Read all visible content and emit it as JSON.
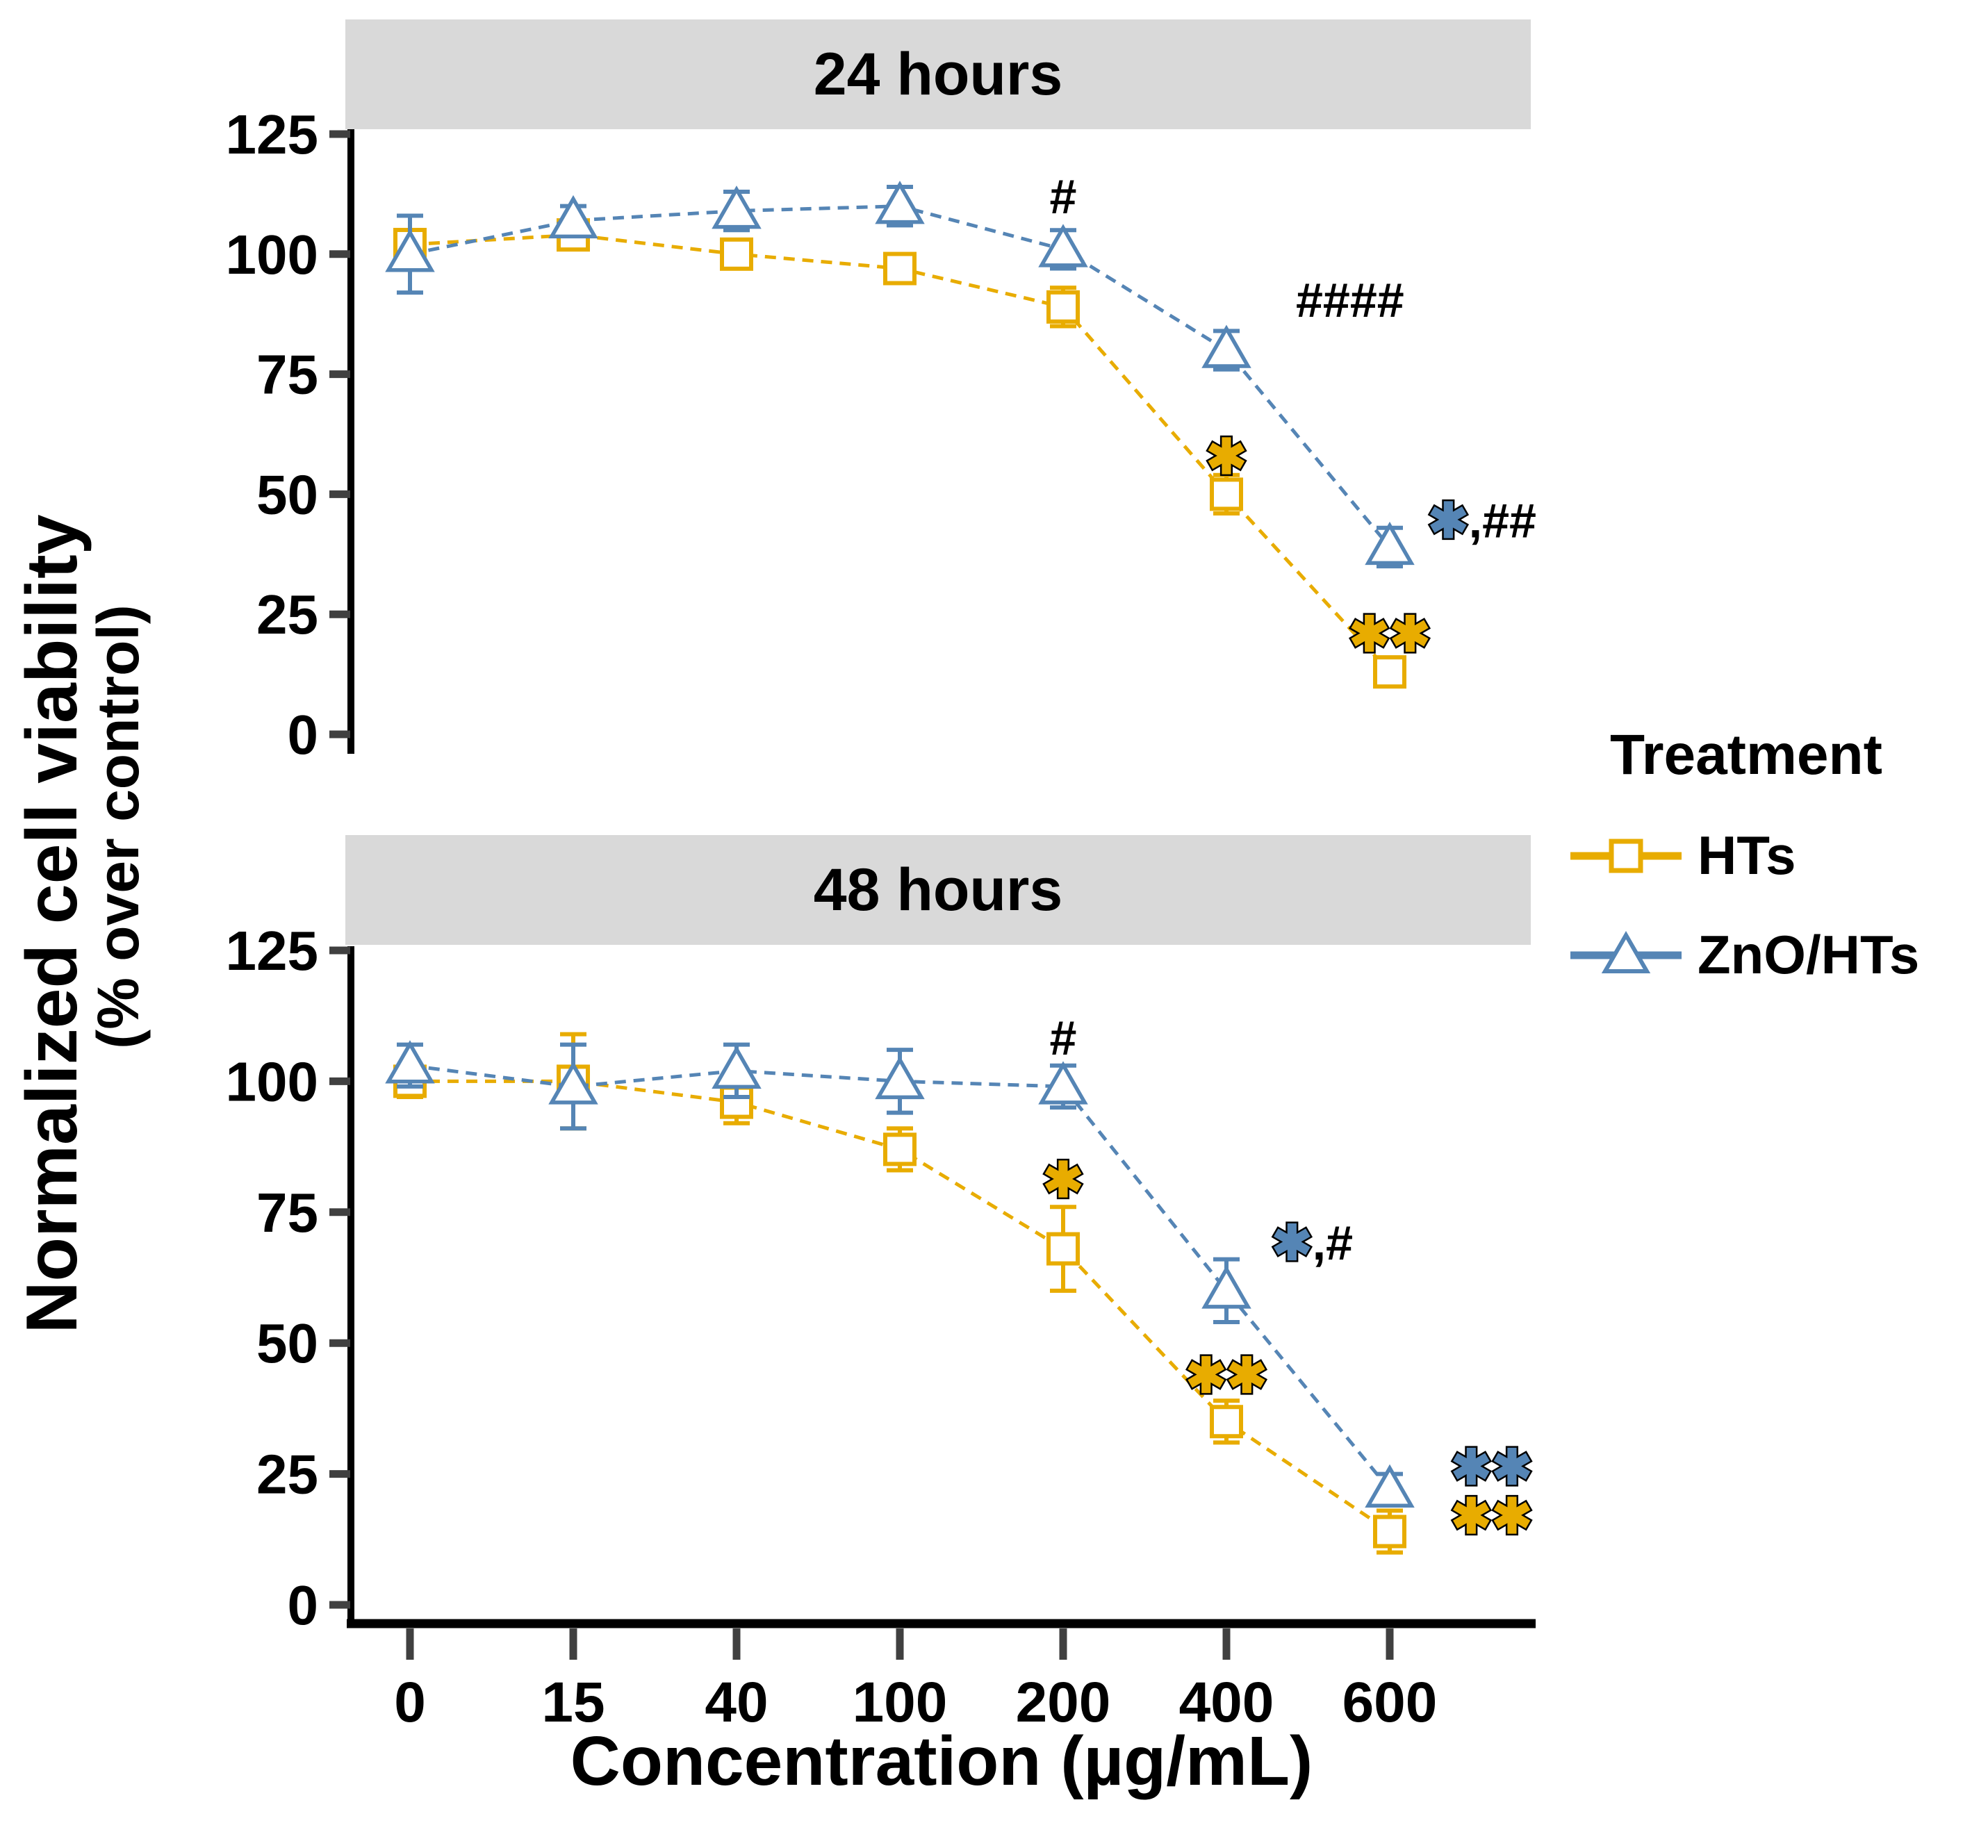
{
  "colors": {
    "hts": "#E8AC00",
    "zno": "#5585B5",
    "strip_bg": "#D9D9D9",
    "axis": "#000000",
    "tick_mark": "#404040",
    "marker_fill": "#FFFFFF"
  },
  "axes": {
    "x_title": "Concentration (µg/mL)",
    "y_title": "Normalized cell viability",
    "y_subtitle": "(% over control)",
    "x_tick_labels": [
      "0",
      "15",
      "40",
      "100",
      "200",
      "400",
      "600"
    ],
    "y_tick_labels": [
      "125",
      "100",
      "75",
      "50",
      "25",
      "0"
    ]
  },
  "legend": {
    "title": "Treatment",
    "items": [
      {
        "label": "HTs",
        "marker": "square",
        "color_key": "hts"
      },
      {
        "label": "ZnO/HTs",
        "marker": "triangle",
        "color_key": "zno"
      }
    ]
  },
  "chart_data": [
    {
      "type": "line",
      "title": "24 hours",
      "xlabel": "Concentration (µg/mL)",
      "ylabel": "Normalized cell viability (% over control)",
      "x_categories": [
        0,
        15,
        40,
        100,
        200,
        400,
        600
      ],
      "ylim": [
        0,
        125
      ],
      "y_ticks": [
        125,
        100,
        75,
        50,
        25,
        0
      ],
      "grid": false,
      "legend_position": "right",
      "series": [
        {
          "name": "HTs",
          "marker": "square",
          "color_key": "hts",
          "values": [
            102,
            104,
            100,
            97,
            89,
            50,
            13
          ],
          "errors": [
            3,
            2,
            3,
            2,
            4,
            4,
            3
          ]
        },
        {
          "name": "ZnO/HTs",
          "marker": "triangle",
          "color_key": "zno",
          "values": [
            100,
            107,
            109,
            110,
            101,
            80,
            39
          ],
          "errors": [
            8,
            3,
            4,
            4,
            4,
            4,
            4
          ]
        }
      ],
      "annotations": [
        {
          "at": 200,
          "series": "ZnO/HTs",
          "text": "#"
        },
        {
          "at": 400,
          "series": "ZnO/HTs",
          "text": "####"
        },
        {
          "at": 400,
          "series": "HTs",
          "text": "*"
        },
        {
          "at": 600,
          "series": "ZnO/HTs",
          "text": "*,##"
        },
        {
          "at": 600,
          "series": "HTs",
          "text": "**"
        }
      ]
    },
    {
      "type": "line",
      "title": "48 hours",
      "xlabel": "Concentration (µg/mL)",
      "ylabel": "Normalized cell viability (% over control)",
      "x_categories": [
        0,
        15,
        40,
        100,
        200,
        400,
        600
      ],
      "ylim": [
        0,
        125
      ],
      "y_ticks": [
        125,
        100,
        75,
        50,
        25,
        0
      ],
      "grid": false,
      "legend_position": "right",
      "series": [
        {
          "name": "HTs",
          "marker": "square",
          "color_key": "hts",
          "values": [
            100,
            100,
            96,
            87,
            68,
            35,
            14
          ],
          "errors": [
            3,
            9,
            4,
            4,
            8,
            4,
            4
          ]
        },
        {
          "name": "ZnO/HTs",
          "marker": "triangle",
          "color_key": "zno",
          "values": [
            103,
            99,
            102,
            100,
            99,
            60,
            22
          ],
          "errors": [
            4,
            8,
            5,
            6,
            4,
            6,
            3
          ]
        }
      ],
      "annotations": [
        {
          "at": 200,
          "series": "ZnO/HTs",
          "text": "#"
        },
        {
          "at": 200,
          "series": "HTs",
          "text": "*"
        },
        {
          "at": 400,
          "series": "ZnO/HTs",
          "text": "*,#"
        },
        {
          "at": 400,
          "series": "HTs",
          "text": "**"
        },
        {
          "at": 600,
          "series": "ZnO/HTs",
          "text": "**"
        },
        {
          "at": 600,
          "series": "HTs",
          "text": "**"
        }
      ]
    }
  ]
}
